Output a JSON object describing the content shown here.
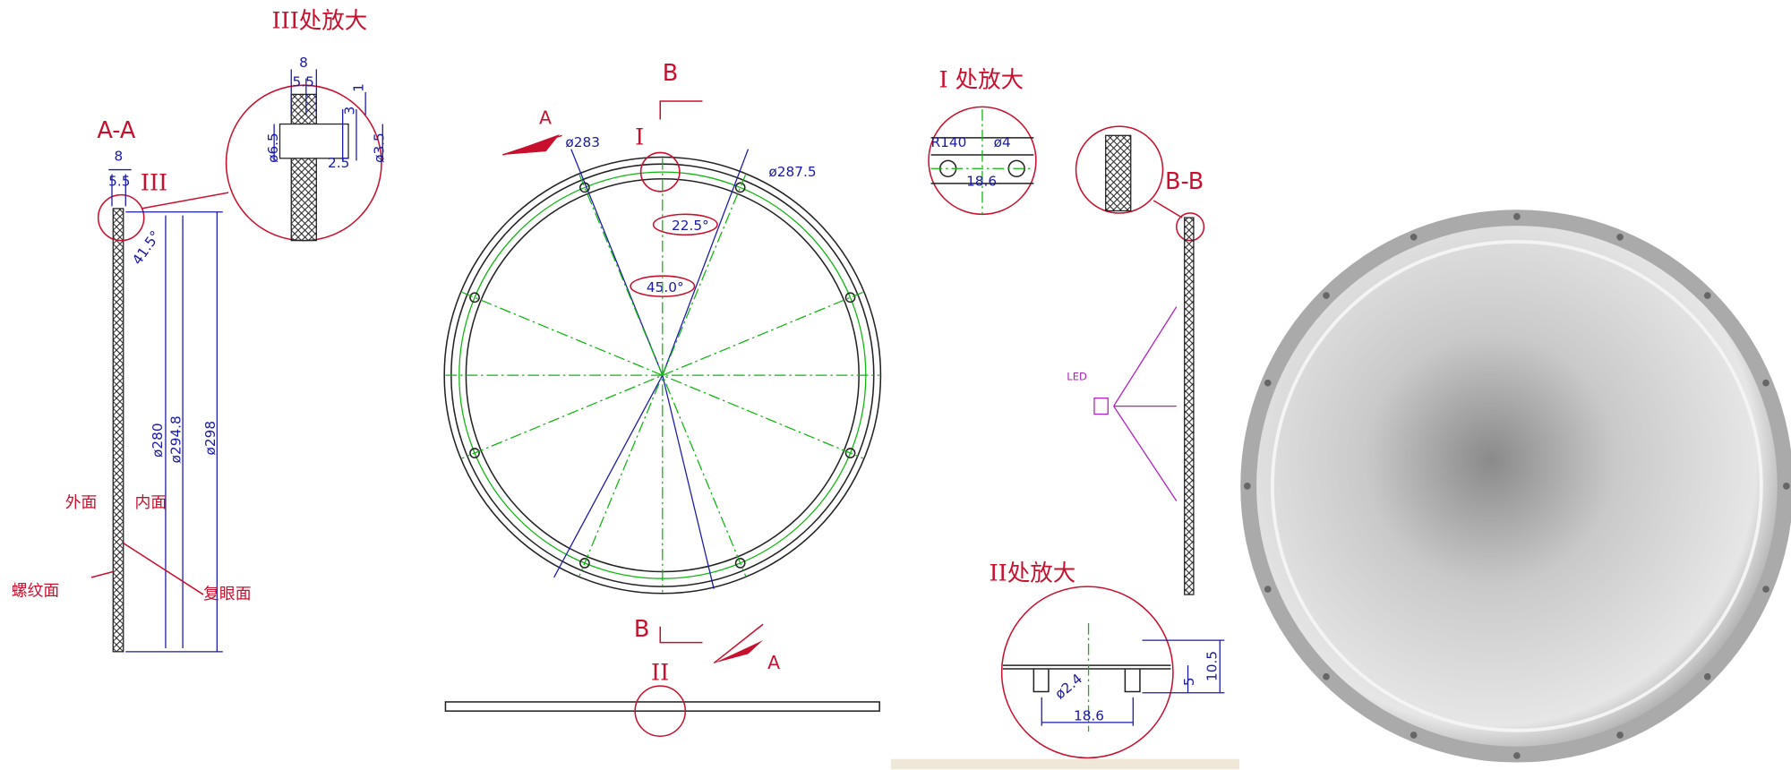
{
  "detail_iii": {
    "title": "III处放大",
    "dims": [
      "8",
      "5.5",
      "3",
      "1",
      "ø6.5",
      "ø3.5",
      "2.5"
    ]
  },
  "section_aa": {
    "title": "A-A",
    "marker": "III",
    "dims": [
      "8",
      "5.5",
      "41.5°",
      "ø280",
      "ø294.8",
      "ø298"
    ],
    "labels": [
      "外面",
      "内面",
      "螺纹面",
      "复眼面"
    ]
  },
  "front_view": {
    "section_marks": [
      "B",
      "A",
      "B",
      "A"
    ],
    "detail_marks": [
      "I",
      "II"
    ],
    "dims": [
      "ø283",
      "ø287.5",
      "22.5°",
      "45.0°"
    ]
  },
  "detail_i": {
    "title": "I 处放大",
    "dims": [
      "R140",
      "ø4",
      "18.6"
    ]
  },
  "section_bb": {
    "title": "B-B",
    "led_label": "LED"
  },
  "detail_ii": {
    "title": "II处放大",
    "dims": [
      "18.6",
      "ø2.4",
      "5",
      "10.5"
    ]
  }
}
